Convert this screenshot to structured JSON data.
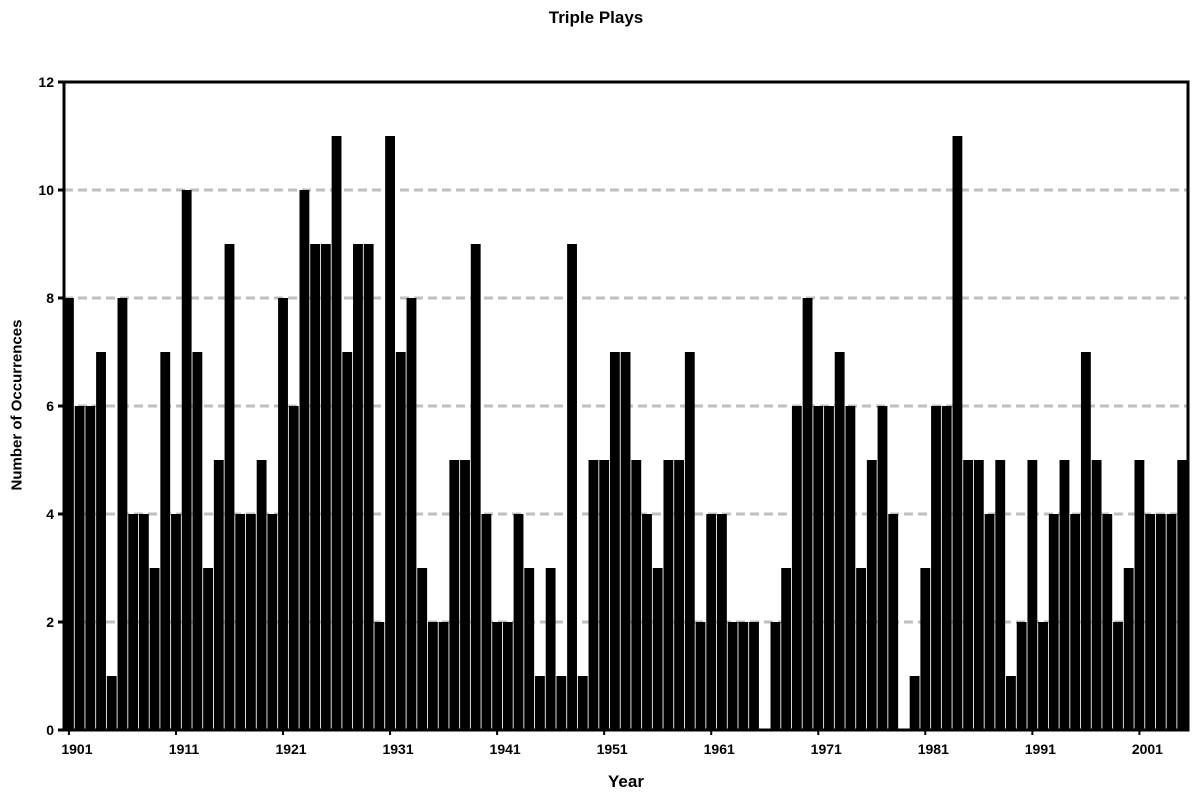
{
  "chart_data": {
    "type": "bar",
    "title": "Triple Plays",
    "xlabel": "Year",
    "ylabel": "Number of Occurrences",
    "ylim": [
      0,
      12
    ],
    "yticks": [
      0,
      2,
      4,
      6,
      8,
      10,
      12
    ],
    "xtick_labels": [
      "1901",
      "1911",
      "1921",
      "1931",
      "1941",
      "1951",
      "1961",
      "1971",
      "1981",
      "1991",
      "2001"
    ],
    "grid": "horizontal dashed",
    "legend": "none",
    "bar_color": "#000000",
    "categories": [
      1901,
      1902,
      1903,
      1904,
      1905,
      1906,
      1907,
      1908,
      1909,
      1910,
      1911,
      1912,
      1913,
      1914,
      1915,
      1916,
      1917,
      1918,
      1919,
      1920,
      1921,
      1922,
      1923,
      1924,
      1925,
      1926,
      1927,
      1928,
      1929,
      1930,
      1931,
      1932,
      1933,
      1934,
      1935,
      1936,
      1937,
      1938,
      1939,
      1940,
      1941,
      1942,
      1943,
      1944,
      1945,
      1946,
      1947,
      1948,
      1949,
      1950,
      1951,
      1952,
      1953,
      1954,
      1955,
      1956,
      1957,
      1958,
      1959,
      1960,
      1961,
      1962,
      1963,
      1964,
      1965,
      1966,
      1967,
      1968,
      1969,
      1970,
      1971,
      1972,
      1973,
      1974,
      1975,
      1976,
      1977,
      1978,
      1979,
      1980,
      1981,
      1982,
      1983,
      1984,
      1985,
      1986,
      1987,
      1988,
      1989,
      1990,
      1991,
      1992,
      1993,
      1994,
      1995,
      1996,
      1997,
      1998,
      1999,
      2000,
      2001,
      2002,
      2003,
      2004,
      2005
    ],
    "values": [
      8,
      6,
      6,
      7,
      1,
      8,
      4,
      4,
      3,
      7,
      4,
      10,
      7,
      3,
      5,
      9,
      4,
      4,
      5,
      4,
      8,
      6,
      10,
      9,
      9,
      11,
      7,
      9,
      9,
      2,
      11,
      7,
      8,
      3,
      2,
      2,
      5,
      5,
      9,
      4,
      2,
      2,
      4,
      3,
      1,
      3,
      1,
      9,
      1,
      5,
      5,
      7,
      7,
      5,
      4,
      3,
      5,
      5,
      7,
      2,
      4,
      4,
      2,
      2,
      2,
      0,
      2,
      3,
      6,
      8,
      6,
      6,
      7,
      6,
      3,
      5,
      6,
      4,
      0,
      1,
      3,
      6,
      6,
      11,
      5,
      5,
      4,
      5,
      1,
      2,
      5,
      2,
      4,
      5,
      4,
      7,
      5,
      4,
      2,
      3,
      5,
      4,
      4,
      4,
      5
    ]
  }
}
